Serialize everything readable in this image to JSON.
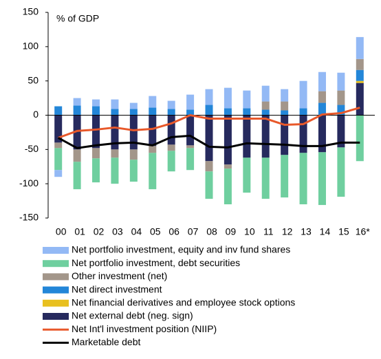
{
  "chart_data": {
    "type": "stacked-bar-line",
    "title": "% of GDP",
    "categories": [
      "00",
      "01",
      "02",
      "03",
      "04",
      "05",
      "06",
      "07",
      "08",
      "09",
      "10",
      "11",
      "12",
      "13",
      "14",
      "15",
      "16*"
    ],
    "ylim": [
      -150,
      150
    ],
    "yticks": [
      -150,
      -100,
      -50,
      0,
      50,
      100,
      150
    ],
    "series": [
      {
        "name": "Net portfolio investment, equity and inv fund shares",
        "color": "#93b9f5",
        "kind": "bar",
        "values": [
          -10,
          11,
          10,
          14,
          9,
          17,
          12,
          22,
          23,
          30,
          26,
          23,
          18,
          40,
          28,
          26,
          32
        ]
      },
      {
        "name": "Net portfolio investment, debt securities",
        "color": "#6fcf9f",
        "kind": "bar",
        "values": [
          -32,
          -40,
          -35,
          -38,
          -32,
          -53,
          -30,
          -32,
          -40,
          -52,
          -51,
          -60,
          -62,
          -75,
          -77,
          -72,
          -67
        ]
      },
      {
        "name": "Other investment (net)",
        "color": "#a3968a",
        "kind": "bar",
        "values": [
          -8,
          -18,
          -15,
          -12,
          -15,
          -10,
          -9,
          -4,
          -15,
          -6,
          0,
          12,
          13,
          0,
          17,
          21,
          16
        ]
      },
      {
        "name": "Net direct investment",
        "color": "#2386d8",
        "kind": "bar",
        "values": [
          13,
          14,
          13,
          9,
          9,
          11,
          9,
          8,
          15,
          10,
          10,
          8,
          7,
          10,
          18,
          15,
          16
        ]
      },
      {
        "name": "Net financial derivatives and employee stock options",
        "color": "#e8c020",
        "kind": "bar",
        "values": [
          0,
          0,
          0,
          0,
          0,
          0,
          0,
          0,
          0,
          0,
          0,
          0,
          0,
          0,
          0,
          0,
          3
        ]
      },
      {
        "name": "Net external debt (neg. sign)",
        "color": "#262a5e",
        "kind": "bar",
        "values": [
          -40,
          -50,
          -48,
          -50,
          -50,
          -45,
          -43,
          -44,
          -67,
          -72,
          -62,
          -62,
          -58,
          -55,
          -54,
          -47,
          47
        ]
      },
      {
        "name": "Net Int'l investment position (NIIP)",
        "color": "#e8582a",
        "kind": "line",
        "values": [
          -33,
          -23,
          -21,
          -18,
          -22,
          -20,
          -12,
          0,
          -5,
          -5,
          -5,
          -5,
          -14,
          -13,
          1,
          3,
          11
        ]
      },
      {
        "name": "Marketable debt",
        "color": "#000000",
        "kind": "line",
        "values": [
          -33,
          -48,
          -44,
          -41,
          -40,
          -44,
          -32,
          -30,
          -46,
          -47,
          -41,
          -42,
          -43,
          -45,
          -45,
          -40,
          -40
        ]
      }
    ]
  }
}
